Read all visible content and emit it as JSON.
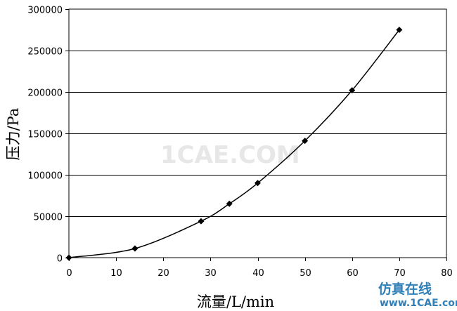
{
  "chart_data": {
    "type": "line",
    "title": "",
    "xlabel": "流量/L/min",
    "ylabel": "压力/Pa",
    "xlim": [
      0,
      80
    ],
    "ylim": [
      0,
      300000
    ],
    "xticks": [
      "0",
      "10",
      "20",
      "30",
      "40",
      "50",
      "60",
      "70",
      "80"
    ],
    "yticks": [
      "0",
      "50000",
      "100000",
      "150000",
      "200000",
      "250000",
      "300000"
    ],
    "grid": "horizontal",
    "legend": "none",
    "marker": "diamond",
    "series": [
      {
        "x": [
          0,
          14,
          28,
          34,
          40,
          50,
          60,
          70
        ],
        "y": [
          0,
          11000,
          44000,
          65000,
          90000,
          141000,
          202000,
          275000
        ]
      }
    ],
    "colors": {
      "line": "#000000",
      "grid": "#000000",
      "watermark": "#e7e7e7",
      "brand": "#2f7fb8"
    }
  },
  "watermark": {
    "text": "1CAE.COM",
    "brand_cn": "仿真在线",
    "brand_url": "www.1CAE.com"
  }
}
